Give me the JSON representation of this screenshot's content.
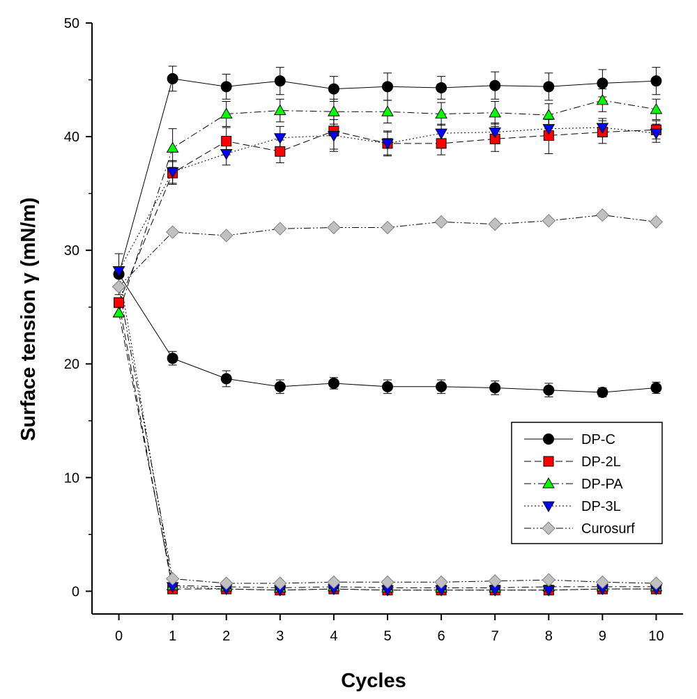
{
  "chart_data": {
    "type": "line",
    "title": "",
    "xlabel": "Cycles",
    "ylabel": "Surface tension γ (mN/m)",
    "xlim": [
      -0.5,
      10.5
    ],
    "ylim": [
      -2,
      50
    ],
    "x_ticks": [
      0,
      1,
      2,
      3,
      4,
      5,
      6,
      7,
      8,
      9,
      10
    ],
    "y_ticks": [
      0,
      10,
      20,
      30,
      40,
      50
    ],
    "grid": false,
    "legend_position": "lower-right",
    "error_bars": true,
    "series": [
      {
        "name": "DP-C",
        "marker": "circle",
        "color": "#000000",
        "line_style": "solid",
        "x": [
          0,
          1,
          2,
          3,
          4,
          5,
          6,
          7,
          8,
          9,
          10
        ],
        "max_values": [
          27.9,
          45.1,
          44.4,
          44.9,
          44.2,
          44.4,
          44.3,
          44.5,
          44.4,
          44.7,
          44.9
        ],
        "max_errors": [
          1.8,
          1.1,
          1.1,
          1.2,
          1.1,
          1.2,
          1.0,
          1.2,
          1.2,
          1.2,
          1.2
        ],
        "min_values": [
          27.9,
          20.5,
          18.7,
          18.0,
          18.3,
          18.0,
          18.0,
          17.9,
          17.7,
          17.5,
          17.9
        ],
        "min_errors": [
          0,
          0.6,
          0.7,
          0.6,
          0.5,
          0.6,
          0.6,
          0.6,
          0.6,
          0.4,
          0.5
        ]
      },
      {
        "name": "DP-2L",
        "marker": "square",
        "color": "#ff0000",
        "line_style": "dash",
        "x": [
          0,
          1,
          2,
          3,
          4,
          5,
          6,
          7,
          8,
          9,
          10
        ],
        "max_values": [
          25.4,
          36.8,
          39.6,
          38.7,
          40.5,
          39.4,
          39.4,
          39.8,
          40.1,
          40.4,
          40.6
        ],
        "max_errors": [
          0,
          1.0,
          1.2,
          1.0,
          1.6,
          1.1,
          1.0,
          1.1,
          1.6,
          1.0,
          0.8
        ],
        "min_values": [
          25.4,
          0.2,
          0.2,
          0.1,
          0.2,
          0.1,
          0.1,
          0.1,
          0.1,
          0.2,
          0.2
        ],
        "min_errors": [
          0,
          0,
          0,
          0,
          0,
          0,
          0,
          0,
          0,
          0,
          0
        ]
      },
      {
        "name": "DP-PA",
        "marker": "triangle-up",
        "color": "#00ff00",
        "line_style": "dashdot",
        "x": [
          0,
          1,
          2,
          3,
          4,
          5,
          6,
          7,
          8,
          9,
          10
        ],
        "max_values": [
          24.5,
          39.0,
          42.0,
          42.3,
          42.2,
          42.2,
          42.0,
          42.1,
          41.9,
          43.2,
          42.4
        ],
        "max_errors": [
          0,
          1.7,
          1.1,
          1.0,
          1.1,
          1.0,
          1.0,
          1.0,
          1.0,
          1.0,
          0.9
        ],
        "min_values": [
          24.5,
          0.5,
          0.4,
          0.3,
          0.4,
          0.3,
          0.3,
          0.3,
          0.4,
          0.4,
          0.4
        ],
        "min_errors": [
          0,
          0,
          0,
          0,
          0,
          0,
          0,
          0,
          0,
          0,
          0
        ]
      },
      {
        "name": "DP-3L",
        "marker": "triangle-down",
        "color": "#0000ff",
        "line_style": "dot",
        "x": [
          0,
          1,
          2,
          3,
          4,
          5,
          6,
          7,
          8,
          9,
          10
        ],
        "max_values": [
          28.2,
          36.9,
          38.5,
          39.9,
          40.1,
          39.4,
          40.3,
          40.4,
          40.7,
          40.8,
          40.3
        ],
        "max_errors": [
          0,
          1.0,
          1.0,
          1.0,
          1.4,
          1.0,
          0.8,
          0.8,
          0.8,
          0.8,
          0.8
        ],
        "min_values": [
          28.2,
          0.4,
          0.2,
          0.1,
          0.2,
          0.1,
          0.1,
          0.1,
          0.1,
          0.2,
          0.2
        ],
        "min_errors": [
          0,
          0,
          0,
          0,
          0,
          0,
          0,
          0,
          0,
          0,
          0
        ]
      },
      {
        "name": "Curosurf",
        "marker": "diamond",
        "color": "#c0c0c0",
        "line_style": "dashdotdot",
        "x": [
          0,
          1,
          2,
          3,
          4,
          5,
          6,
          7,
          8,
          9,
          10
        ],
        "max_values": [
          26.8,
          31.6,
          31.3,
          31.9,
          32.0,
          32.0,
          32.5,
          32.3,
          32.6,
          33.1,
          32.5
        ],
        "max_errors": [
          0,
          0,
          0,
          0,
          0,
          0,
          0,
          0,
          0,
          0,
          0
        ],
        "min_values": [
          26.8,
          1.1,
          0.7,
          0.7,
          0.8,
          0.8,
          0.8,
          0.9,
          1.0,
          0.8,
          0.7
        ],
        "min_errors": [
          0,
          0,
          0,
          0,
          0,
          0,
          0,
          0,
          0,
          0,
          0
        ]
      }
    ]
  }
}
